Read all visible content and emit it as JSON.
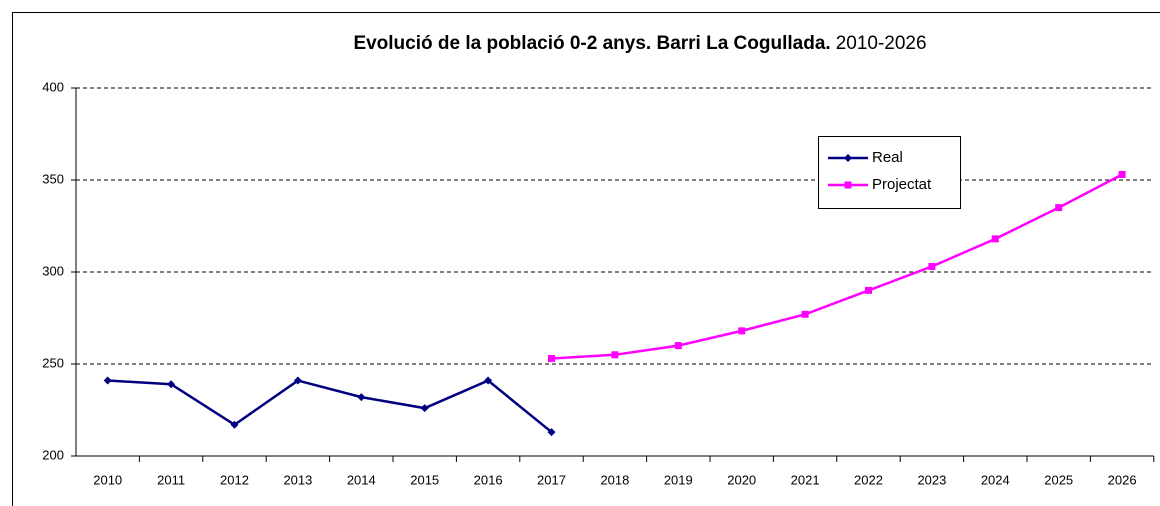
{
  "chart_data": {
    "type": "line",
    "title": "Evolució de la població 0-2 anys. Barri La Cogullada.",
    "subtitle": "2010-2026",
    "categories": [
      "2010",
      "2011",
      "2012",
      "2013",
      "2014",
      "2015",
      "2016",
      "2017",
      "2018",
      "2019",
      "2020",
      "2021",
      "2022",
      "2023",
      "2024",
      "2025",
      "2026"
    ],
    "series": [
      {
        "name": "Real",
        "color": "#000080",
        "marker": "diamond",
        "values": [
          241,
          239,
          217,
          241,
          232,
          226,
          241,
          213,
          null,
          null,
          null,
          null,
          null,
          null,
          null,
          null,
          null
        ]
      },
      {
        "name": "Projectat",
        "color": "#ff00ff",
        "marker": "square",
        "values": [
          null,
          null,
          null,
          null,
          null,
          null,
          null,
          253,
          255,
          260,
          268,
          277,
          290,
          303,
          318,
          335,
          353
        ]
      }
    ],
    "ylim": [
      200,
      400
    ],
    "yticks": [
      200,
      250,
      300,
      350,
      400
    ],
    "grid": true,
    "legend": "upper right"
  }
}
